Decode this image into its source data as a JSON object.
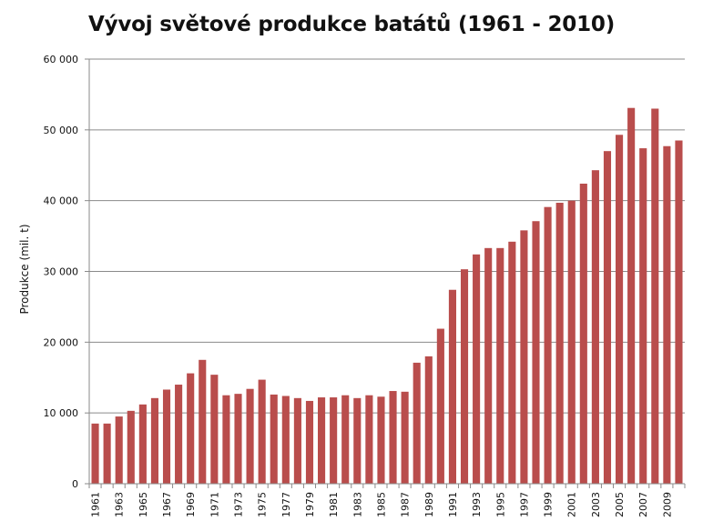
{
  "chart_data": {
    "type": "bar",
    "title": "Vývoj světové produkce batátů (1961 - 2010)",
    "xlabel": "",
    "ylabel": "Produkce (mil. t)",
    "ylim": [
      0,
      60000
    ],
    "yticks": [
      {
        "value": 0,
        "label": "0"
      },
      {
        "value": 10000,
        "label": "10 000"
      },
      {
        "value": 20000,
        "label": "20 000"
      },
      {
        "value": 30000,
        "label": "30 000"
      },
      {
        "value": 40000,
        "label": "40 000"
      },
      {
        "value": 50000,
        "label": "50 000"
      },
      {
        "value": 60000,
        "label": "60 000"
      }
    ],
    "grid": "horizontal",
    "legend": "none",
    "bar_color": "#b94d4c",
    "categories": [
      "1961",
      "1962",
      "1963",
      "1964",
      "1965",
      "1966",
      "1967",
      "1968",
      "1969",
      "1970",
      "1971",
      "1972",
      "1973",
      "1974",
      "1975",
      "1976",
      "1977",
      "1978",
      "1979",
      "1980",
      "1981",
      "1982",
      "1983",
      "1984",
      "1985",
      "1986",
      "1987",
      "1988",
      "1989",
      "1990",
      "1991",
      "1992",
      "1993",
      "1994",
      "1995",
      "1996",
      "1997",
      "1998",
      "1999",
      "2000",
      "2001",
      "2002",
      "2003",
      "2004",
      "2005",
      "2006",
      "2007",
      "2008",
      "2009",
      "2010"
    ],
    "tick_labels": [
      "1961",
      "",
      "1963",
      "",
      "1965",
      "",
      "1967",
      "",
      "1969",
      "",
      "1971",
      "",
      "1973",
      "",
      "1975",
      "",
      "1977",
      "",
      "1979",
      "",
      "1981",
      "",
      "1983",
      "",
      "1985",
      "",
      "1987",
      "",
      "1989",
      "",
      "1991",
      "",
      "1993",
      "",
      "1995",
      "",
      "1997",
      "",
      "1999",
      "",
      "2001",
      "",
      "2003",
      "",
      "2005",
      "",
      "2007",
      "",
      "2009",
      ""
    ],
    "values": [
      8500,
      8500,
      9500,
      10300,
      11200,
      12100,
      13300,
      14000,
      15600,
      17500,
      15400,
      12500,
      12700,
      13400,
      14700,
      12600,
      12400,
      12100,
      11700,
      12200,
      12200,
      12500,
      12100,
      12500,
      12300,
      13100,
      13000,
      17100,
      18000,
      21900,
      27400,
      30300,
      32400,
      33300,
      33300,
      34200,
      35800,
      37100,
      39100,
      39700,
      40000,
      42400,
      44300,
      47000,
      49300,
      53100,
      47400,
      53000,
      47700,
      48500
    ]
  }
}
